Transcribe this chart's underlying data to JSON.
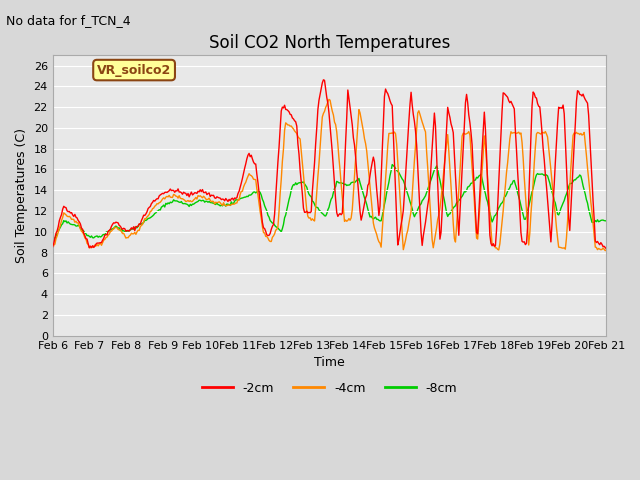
{
  "title": "Soil CO2 North Temperatures",
  "subtitle": "No data for f_TCN_4",
  "ylabel": "Soil Temperatures (C)",
  "xlabel": "Time",
  "legend_label": "VR_soilco2",
  "ylim": [
    0,
    27
  ],
  "yticks": [
    0,
    2,
    4,
    6,
    8,
    10,
    12,
    14,
    16,
    18,
    20,
    22,
    24,
    26
  ],
  "colors": {
    "neg2cm": "#ff0000",
    "neg4cm": "#ff8800",
    "neg8cm": "#00cc00"
  },
  "line_labels": [
    "-2cm",
    "-4cm",
    "-8cm"
  ],
  "background_color": "#d8d8d8",
  "plot_bg_color": "#e8e8e8",
  "x_labels": [
    "Feb 6",
    "Feb 7",
    "Feb 8",
    "Feb 9",
    "Feb 10",
    "Feb 11",
    "Feb 12",
    "Feb 13",
    "Feb 14",
    "Feb 15",
    "Feb 16",
    "Feb 17",
    "Feb 18",
    "Feb 19",
    "Feb 20",
    "Feb 21"
  ],
  "n_points": 500
}
